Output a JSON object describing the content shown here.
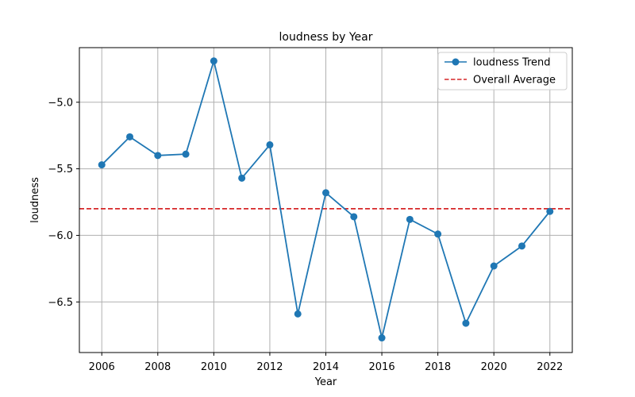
{
  "chart_data": {
    "type": "line",
    "title": "loudness by Year",
    "xlabel": "Year",
    "ylabel": "loudness",
    "x": [
      2006,
      2007,
      2008,
      2009,
      2010,
      2011,
      2012,
      2013,
      2014,
      2015,
      2016,
      2017,
      2018,
      2019,
      2020,
      2021,
      2022
    ],
    "series": [
      {
        "name": "loudness Trend",
        "color": "#1f77b4",
        "marker": "circle",
        "values": [
          -5.47,
          -5.26,
          -5.4,
          -5.39,
          -4.69,
          -5.57,
          -5.32,
          -6.59,
          -5.68,
          -5.86,
          -6.77,
          -5.88,
          -5.99,
          -6.66,
          -6.23,
          -6.08,
          -5.82
        ]
      }
    ],
    "reference_line": {
      "name": "Overall Average",
      "value": -5.8,
      "color": "#d62728",
      "style": "dashed"
    },
    "xlim": [
      2005.2,
      2022.8
    ],
    "ylim": [
      -6.88,
      -4.59
    ],
    "xticks": [
      2006,
      2008,
      2010,
      2012,
      2014,
      2016,
      2018,
      2020,
      2022
    ],
    "yticks": [
      -5.0,
      -5.5,
      -6.0,
      -6.5
    ],
    "ytick_labels": [
      "−5.0",
      "−5.5",
      "−6.0",
      "−6.5"
    ],
    "grid": true,
    "legend_position": "top-right"
  }
}
